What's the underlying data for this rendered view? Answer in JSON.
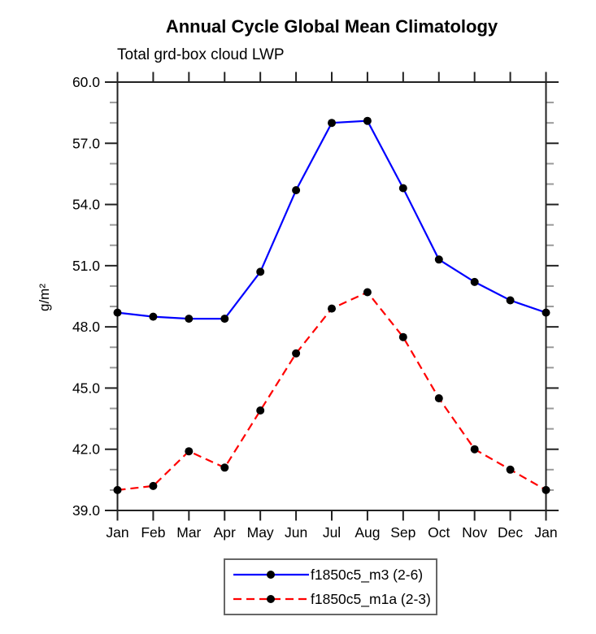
{
  "chart_data": {
    "type": "line",
    "title": "Annual Cycle Global Mean Climatology",
    "subtitle": "Total grd-box cloud LWP",
    "ylabel": "g/m²",
    "xlabel": "",
    "x_categories": [
      "Jan",
      "Feb",
      "Mar",
      "Apr",
      "May",
      "Jun",
      "Jul",
      "Aug",
      "Sep",
      "Oct",
      "Nov",
      "Dec",
      "Jan"
    ],
    "ylim": [
      39.0,
      60.0
    ],
    "ytick_major_interval": 3.0,
    "ytick_minor_interval": 1.0,
    "ytick_labels": [
      "39.0",
      "42.0",
      "45.0",
      "48.0",
      "51.0",
      "54.0",
      "57.0",
      "60.0"
    ],
    "grid": false,
    "legend_position": "bottom-center",
    "series": [
      {
        "name": "f1850c5_m3 (2-6)",
        "color": "#0000ff",
        "line_style": "solid",
        "marker": "filled-circle",
        "marker_color": "#000000",
        "values": [
          48.7,
          48.5,
          48.4,
          48.4,
          50.7,
          54.7,
          58.0,
          58.1,
          54.8,
          51.3,
          50.2,
          49.3,
          48.7
        ]
      },
      {
        "name": "f1850c5_m1a (2-3)",
        "color": "#ff0000",
        "line_style": "dashed",
        "marker": "filled-circle",
        "marker_color": "#000000",
        "values": [
          40.0,
          40.2,
          41.9,
          41.1,
          43.9,
          46.7,
          48.9,
          49.7,
          47.5,
          44.5,
          42.0,
          41.0,
          40.0
        ]
      }
    ]
  },
  "colors": {
    "axis": "#222222",
    "minor_tick": "#9a9a9a",
    "text": "#000000",
    "background": "#ffffff"
  }
}
